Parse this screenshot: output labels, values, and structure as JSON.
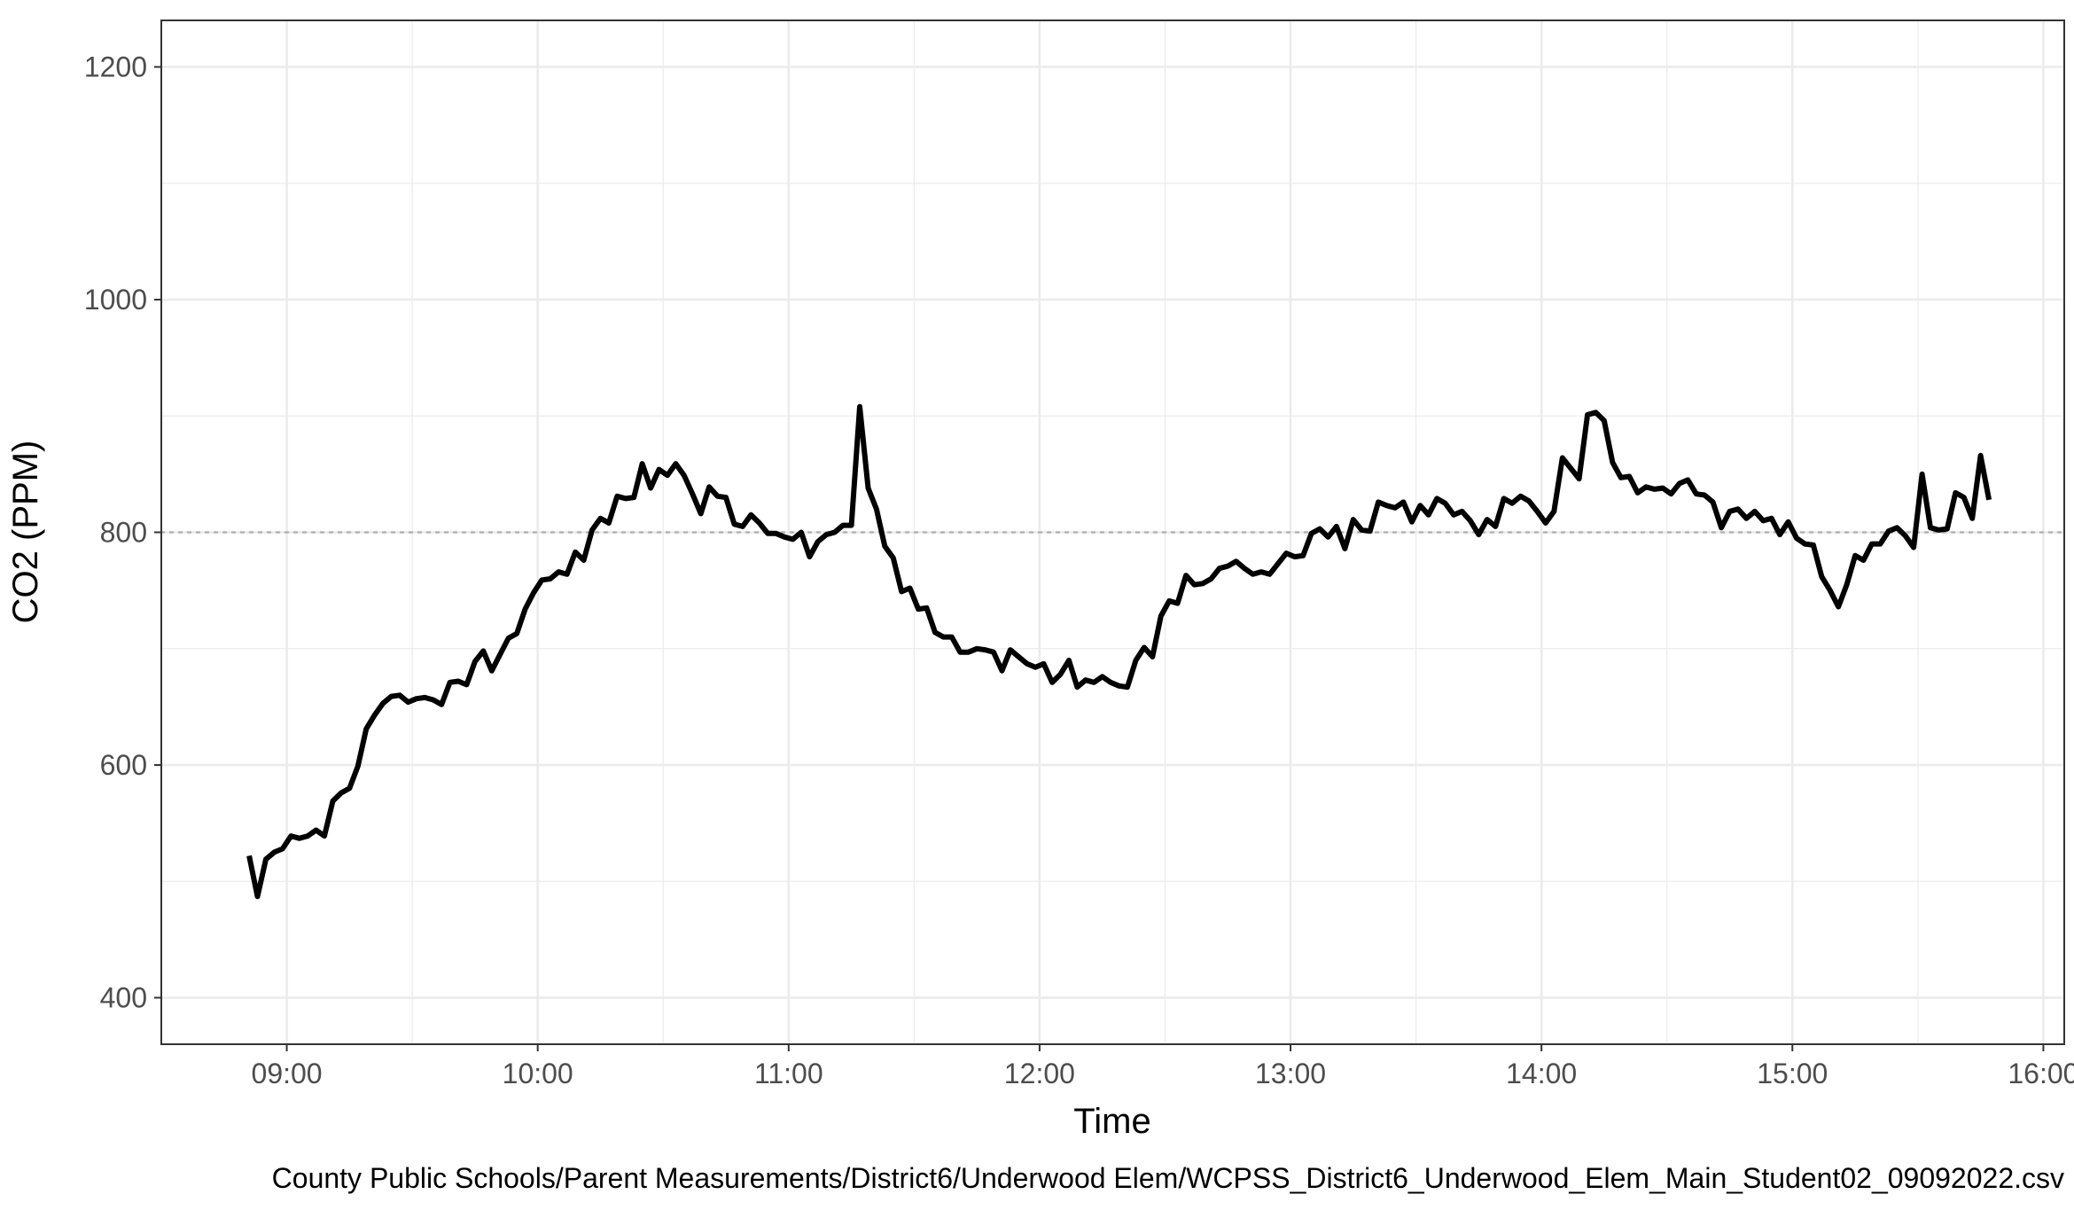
{
  "chart_data": {
    "type": "line",
    "title": "",
    "xlabel": "Time",
    "ylabel": "CO2 (PPM)",
    "caption": "County Public Schools/Parent Measurements/District6/Underwood Elem/WCPSS_District6_Underwood_Elem_Main_Student02_09092022.csv",
    "xlim": [
      "08:30",
      "16:05"
    ],
    "ylim": [
      360,
      1240
    ],
    "x_ticks": [
      "09:00",
      "10:00",
      "11:00",
      "12:00",
      "13:00",
      "14:00",
      "15:00",
      "16:00"
    ],
    "y_ticks": [
      400,
      600,
      800,
      1000,
      1200
    ],
    "grid": true,
    "reference_line": {
      "y": 800,
      "style": "dotted"
    },
    "line_color": "#000000",
    "series": [
      {
        "x": [
          "08:51",
          "08:53",
          "08:55",
          "08:57",
          "08:59",
          "09:01",
          "09:03",
          "09:05",
          "09:07",
          "09:09",
          "09:11",
          "09:13",
          "09:15",
          "09:17",
          "09:19",
          "09:21",
          "09:23",
          "09:25",
          "09:27",
          "09:29",
          "09:31",
          "09:33",
          "09:35",
          "09:37",
          "09:39",
          "09:41",
          "09:43",
          "09:45",
          "09:47",
          "09:49",
          "09:51",
          "09:53",
          "09:55",
          "09:57",
          "09:59",
          "10:01",
          "10:03",
          "10:05",
          "10:07",
          "10:09",
          "10:11",
          "10:13",
          "10:15",
          "10:17",
          "10:19",
          "10:21",
          "10:23",
          "10:25",
          "10:27",
          "10:29",
          "10:31",
          "10:33",
          "10:35",
          "10:37",
          "10:39",
          "10:41",
          "10:43",
          "10:45",
          "10:47",
          "10:49",
          "10:51",
          "10:53",
          "10:55",
          "10:57",
          "10:59",
          "11:01",
          "11:03",
          "11:05",
          "11:07",
          "11:09",
          "11:11",
          "11:13",
          "11:15",
          "11:17",
          "11:19",
          "11:21",
          "11:23",
          "11:25",
          "11:27",
          "11:29",
          "11:31",
          "11:33",
          "11:35",
          "11:37",
          "11:39",
          "11:41",
          "11:43",
          "11:45",
          "11:47",
          "11:49",
          "11:51",
          "11:53",
          "11:55",
          "11:57",
          "11:59",
          "12:01",
          "12:03",
          "12:05",
          "12:07",
          "12:09",
          "12:11",
          "12:13",
          "12:15",
          "12:17",
          "12:19",
          "12:21",
          "12:23",
          "12:25",
          "12:27",
          "12:29",
          "12:31",
          "12:33",
          "12:35",
          "12:37",
          "12:39",
          "12:41",
          "12:43",
          "12:45",
          "12:47",
          "12:49",
          "12:51",
          "12:53",
          "12:55",
          "12:57",
          "12:59",
          "13:01",
          "13:03",
          "13:05",
          "13:07",
          "13:09",
          "13:11",
          "13:13",
          "13:15",
          "13:17",
          "13:19",
          "13:21",
          "13:23",
          "13:25",
          "13:27",
          "13:29",
          "13:31",
          "13:33",
          "13:35",
          "13:37",
          "13:39",
          "13:41",
          "13:43",
          "13:45",
          "13:47",
          "13:49",
          "13:51",
          "13:53",
          "13:55",
          "13:57",
          "13:59",
          "14:01",
          "14:03",
          "14:05",
          "14:07",
          "14:09",
          "14:11",
          "14:13",
          "14:15",
          "14:17",
          "14:19",
          "14:21",
          "14:23",
          "14:25",
          "14:27",
          "14:29",
          "14:31",
          "14:33",
          "14:35",
          "14:37",
          "14:39",
          "14:41",
          "14:43",
          "14:45",
          "14:47",
          "14:49",
          "14:51",
          "14:53",
          "14:55",
          "14:57",
          "14:59",
          "15:01",
          "15:03",
          "15:05",
          "15:07",
          "15:09",
          "15:11",
          "15:13",
          "15:15",
          "15:17",
          "15:19",
          "15:21",
          "15:23",
          "15:25",
          "15:27",
          "15:29",
          "15:31",
          "15:33",
          "15:35",
          "15:37",
          "15:39",
          "15:41",
          "15:43",
          "15:45",
          "15:47"
        ],
        "values": [
          522,
          487,
          519,
          525,
          528,
          539,
          537,
          539,
          544,
          539,
          569,
          576,
          580,
          599,
          631,
          643,
          653,
          659,
          660,
          654,
          657,
          658,
          656,
          652,
          671,
          672,
          669,
          689,
          698,
          681,
          695,
          709,
          713,
          734,
          748,
          759,
          760,
          766,
          764,
          783,
          776,
          802,
          812,
          808,
          831,
          829,
          830,
          859,
          838,
          854,
          849,
          859,
          849,
          833,
          816,
          839,
          831,
          830,
          807,
          805,
          815,
          808,
          799,
          799,
          796,
          794,
          800,
          779,
          792,
          798,
          800,
          806,
          806,
          908,
          838,
          820,
          788,
          778,
          749,
          752,
          734,
          735,
          714,
          710,
          710,
          697,
          697,
          700,
          699,
          697,
          681,
          699,
          693,
          687,
          684,
          687,
          671,
          678,
          690,
          667,
          673,
          671,
          676,
          671,
          668,
          667,
          690,
          701,
          693,
          728,
          741,
          739,
          763,
          755,
          756,
          760,
          769,
          771,
          775,
          769,
          764,
          766,
          764,
          773,
          782,
          779,
          780,
          799,
          803,
          796,
          805,
          786,
          811,
          802,
          801,
          826,
          823,
          821,
          826,
          809,
          823,
          815,
          829,
          825,
          815,
          818,
          810,
          798,
          811,
          805,
          829,
          825,
          831,
          827,
          818,
          808,
          818,
          864,
          855,
          846,
          901,
          903,
          896,
          860,
          847,
          848,
          834,
          839,
          837,
          838,
          833,
          842,
          845,
          833,
          832,
          826,
          804,
          818,
          820,
          812,
          818,
          810,
          812,
          798,
          809,
          795,
          790,
          789,
          762,
          750,
          736,
          755,
          780,
          776,
          790,
          790,
          801,
          804,
          797,
          787,
          850,
          804,
          802,
          803,
          834,
          830,
          812,
          866,
          828
        ]
      }
    ]
  }
}
